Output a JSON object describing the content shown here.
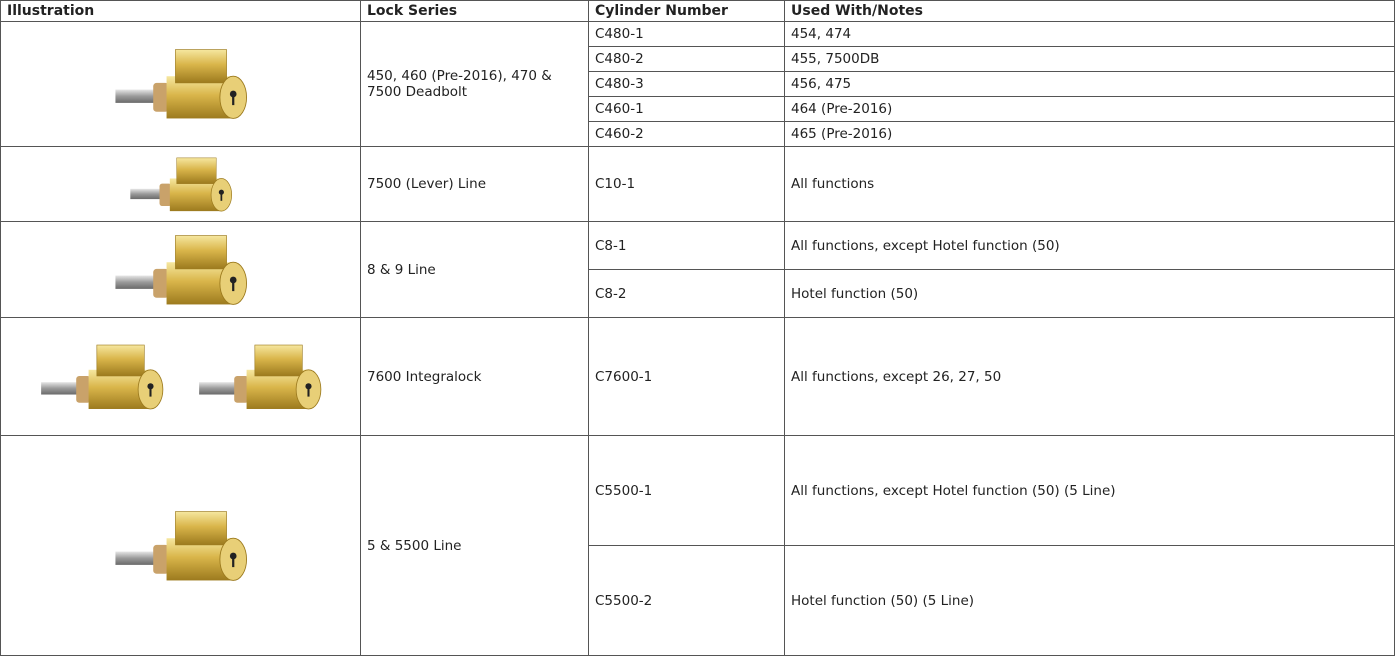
{
  "table": {
    "header": [
      "Illustration",
      "Lock Series",
      "Cylinder Number",
      "Used With/Notes"
    ],
    "groups": [
      {
        "lock_series": "450, 460 (Pre-2016), 470 & 7500 Deadbolt",
        "cylinders": [
          {
            "number": "C480-1",
            "notes": "454, 474"
          },
          {
            "number": "C480-2",
            "notes": "455, 7500DB"
          },
          {
            "number": "C480-3",
            "notes": "456, 475"
          },
          {
            "number": "C460-1",
            "notes": "464 (Pre-2016)"
          },
          {
            "number": "C460-2",
            "notes": "465 (Pre-2016)"
          }
        ]
      },
      {
        "lock_series": "7500 (Lever) Line",
        "cylinders": [
          {
            "number": "C10-1",
            "notes": "All functions"
          }
        ]
      },
      {
        "lock_series": "8 & 9 Line",
        "cylinders": [
          {
            "number": "C8-1",
            "notes": "All functions, except Hotel function (50)"
          },
          {
            "number": "C8-2",
            "notes": "Hotel function (50)"
          }
        ]
      },
      {
        "lock_series": "7600 Integralock",
        "cylinders": [
          {
            "number": "C7600-1",
            "notes": "All functions, except 26, 27, 50"
          }
        ]
      },
      {
        "lock_series": "5 & 5500 Line",
        "cylinders": [
          {
            "number": "C5500-1",
            "notes": "All functions, except Hotel function (50) (5 Line)"
          },
          {
            "number": "C5500-2",
            "notes": "Hotel function (50) (5 Line)"
          }
        ]
      }
    ]
  }
}
